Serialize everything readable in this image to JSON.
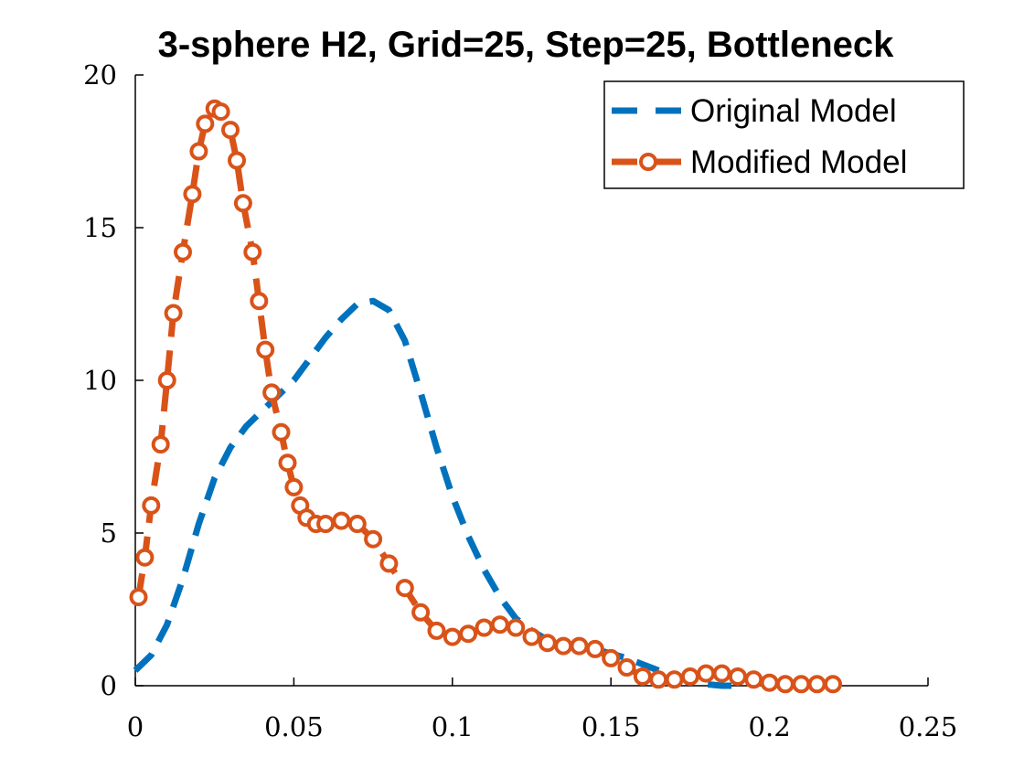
{
  "chart_data": {
    "type": "line",
    "title": "3-sphere H2, Grid=25, Step=25, Bottleneck",
    "xlabel": "",
    "ylabel": "",
    "xlim": [
      0,
      0.25
    ],
    "ylim": [
      0,
      20
    ],
    "xticks": [
      "0",
      "0.05",
      "0.1",
      "0.15",
      "0.2",
      "0.25"
    ],
    "yticks": [
      "0",
      "5",
      "10",
      "15",
      "20"
    ],
    "grid": false,
    "legend_position": "top-right",
    "series": [
      {
        "name": "Original Model",
        "color": "#0072BD",
        "style": "dashed",
        "marker": "none",
        "x": [
          0,
          0.005,
          0.01,
          0.015,
          0.02,
          0.025,
          0.03,
          0.035,
          0.04,
          0.045,
          0.05,
          0.055,
          0.06,
          0.065,
          0.07,
          0.075,
          0.08,
          0.085,
          0.09,
          0.095,
          0.1,
          0.105,
          0.11,
          0.115,
          0.12,
          0.125,
          0.13,
          0.135,
          0.14,
          0.145,
          0.15,
          0.155,
          0.16,
          0.165,
          0.17,
          0.175,
          0.18,
          0.185,
          0.19
        ],
        "y": [
          0.5,
          1.0,
          2.0,
          3.5,
          5.3,
          6.8,
          7.8,
          8.5,
          9.0,
          9.5,
          10.0,
          10.7,
          11.4,
          12.0,
          12.5,
          12.6,
          12.3,
          11.3,
          9.6,
          7.8,
          6.2,
          4.9,
          3.8,
          2.9,
          2.2,
          1.8,
          1.5,
          1.4,
          1.3,
          1.2,
          1.05,
          0.9,
          0.7,
          0.5,
          0.3,
          0.15,
          0.05,
          0.0,
          0.0
        ]
      },
      {
        "name": "Modified Model",
        "color": "#D95319",
        "style": "dashed",
        "marker": "circle",
        "x": [
          0.001,
          0.003,
          0.005,
          0.008,
          0.01,
          0.012,
          0.015,
          0.018,
          0.02,
          0.022,
          0.025,
          0.027,
          0.03,
          0.032,
          0.034,
          0.037,
          0.039,
          0.041,
          0.043,
          0.046,
          0.048,
          0.05,
          0.052,
          0.054,
          0.057,
          0.06,
          0.065,
          0.07,
          0.075,
          0.08,
          0.085,
          0.09,
          0.095,
          0.1,
          0.105,
          0.11,
          0.115,
          0.12,
          0.125,
          0.13,
          0.135,
          0.14,
          0.145,
          0.15,
          0.155,
          0.16,
          0.165,
          0.17,
          0.175,
          0.18,
          0.185,
          0.19,
          0.195,
          0.2,
          0.205,
          0.21,
          0.215,
          0.22
        ],
        "y": [
          2.9,
          4.2,
          5.9,
          7.9,
          10.0,
          12.2,
          14.2,
          16.1,
          17.5,
          18.4,
          18.9,
          18.8,
          18.2,
          17.2,
          15.8,
          14.2,
          12.6,
          11.0,
          9.6,
          8.3,
          7.3,
          6.5,
          5.9,
          5.5,
          5.3,
          5.3,
          5.4,
          5.3,
          4.8,
          4.0,
          3.2,
          2.4,
          1.8,
          1.6,
          1.7,
          1.9,
          2.0,
          1.9,
          1.6,
          1.4,
          1.3,
          1.3,
          1.2,
          0.9,
          0.6,
          0.3,
          0.2,
          0.2,
          0.3,
          0.4,
          0.4,
          0.3,
          0.2,
          0.1,
          0.05,
          0.05,
          0.05,
          0.05
        ]
      }
    ]
  }
}
